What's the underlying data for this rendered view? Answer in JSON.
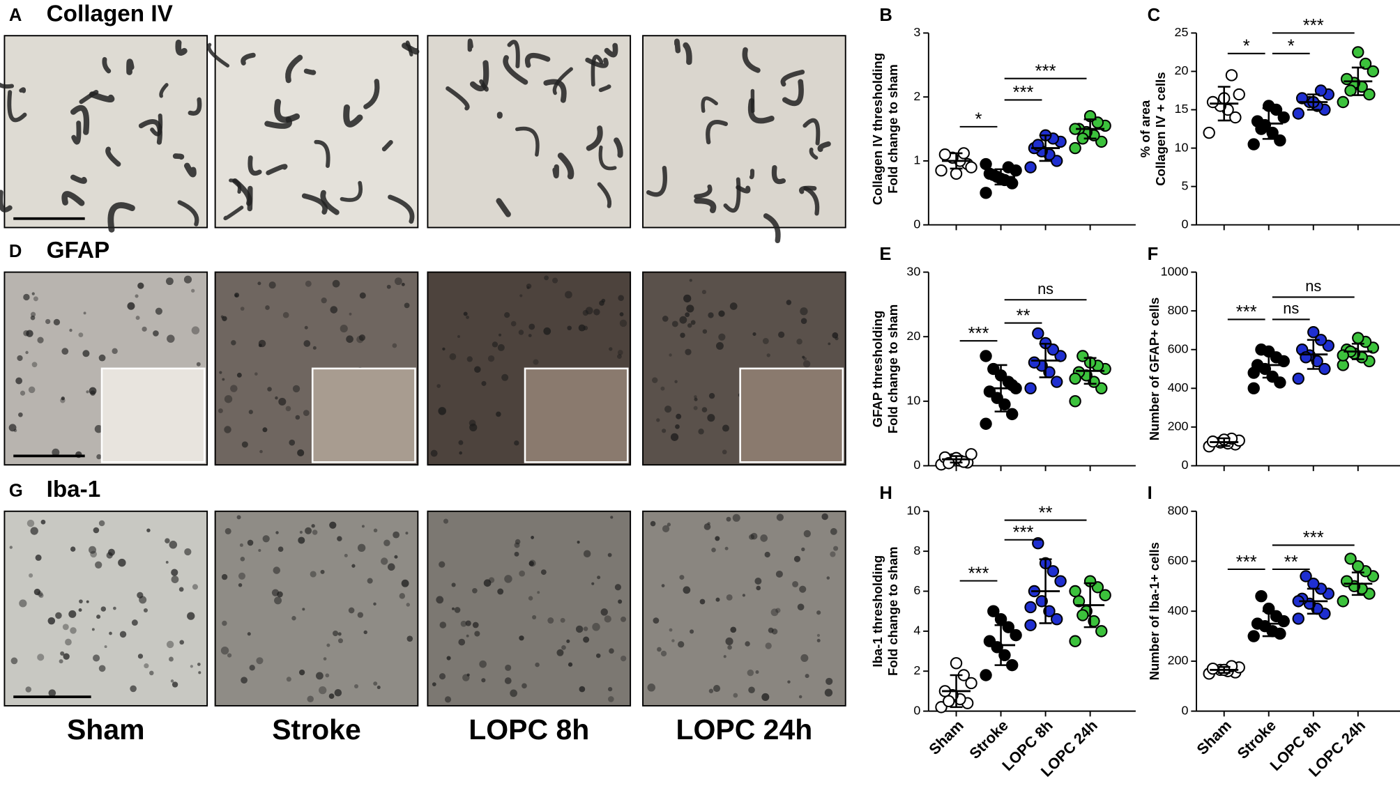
{
  "figure": {
    "rows": [
      {
        "letter": "A",
        "title": "Collagen IV"
      },
      {
        "letter": "D",
        "title": "GFAP"
      },
      {
        "letter": "G",
        "title": "Iba-1"
      }
    ],
    "columns": [
      "Sham",
      "Stroke",
      "LOPC 8h",
      "LOPC 24h"
    ]
  },
  "chart_data": [
    {
      "type": "scatter",
      "letter": "B",
      "ylabel": [
        "Collagen IV thresholding",
        "Fold change to sham"
      ],
      "categories": [
        null,
        null,
        null,
        null
      ],
      "ylim": [
        0,
        3
      ],
      "yticks": [
        0,
        1,
        2,
        3
      ],
      "groups": [
        {
          "color": "#ffffff",
          "values": [
            0.85,
            0.95,
            1.0,
            1.05,
            1.1,
            0.9,
            1.12,
            0.8
          ],
          "mean": 1.0,
          "sd": 0.12
        },
        {
          "color": "#000000",
          "values": [
            0.5,
            0.65,
            0.7,
            0.75,
            0.8,
            0.85,
            0.9,
            0.72,
            0.78,
            0.95
          ],
          "mean": 0.75,
          "sd": 0.12
        },
        {
          "color": "#1f2fd0",
          "values": [
            0.9,
            1.0,
            1.1,
            1.15,
            1.2,
            1.3,
            1.35,
            1.4,
            1.25
          ],
          "mean": 1.2,
          "sd": 0.2
        },
        {
          "color": "#3cc23c",
          "values": [
            1.2,
            1.3,
            1.4,
            1.45,
            1.5,
            1.55,
            1.6,
            1.7,
            1.35,
            1.5
          ],
          "mean": 1.5,
          "sd": 0.15
        }
      ],
      "comparisons": [
        {
          "from": 0,
          "to": 1,
          "label": "*"
        },
        {
          "from": 1,
          "to": 2,
          "label": "***"
        },
        {
          "from": 1,
          "to": 3,
          "label": "***"
        }
      ]
    },
    {
      "type": "scatter",
      "letter": "C",
      "ylabel": [
        "% of area",
        "Collagen IV + cells"
      ],
      "categories": [
        null,
        null,
        null,
        null
      ],
      "ylim": [
        0,
        25
      ],
      "yticks": [
        0,
        5,
        10,
        15,
        20,
        25
      ],
      "groups": [
        {
          "color": "#ffffff",
          "values": [
            12,
            14,
            15,
            15.5,
            16,
            17,
            19.5,
            16.5
          ],
          "mean": 15.8,
          "sd": 2.2
        },
        {
          "color": "#000000",
          "values": [
            10.5,
            11,
            12,
            13,
            13.5,
            14,
            15,
            15.5,
            12.5
          ],
          "mean": 13.2,
          "sd": 2
        },
        {
          "color": "#1f2fd0",
          "values": [
            14.5,
            15,
            15.5,
            16,
            16.5,
            17,
            17.5,
            16
          ],
          "mean": 16,
          "sd": 1
        },
        {
          "color": "#3cc23c",
          "values": [
            16,
            17,
            18,
            18.5,
            19,
            20,
            21,
            22.5,
            17.5
          ],
          "mean": 18.7,
          "sd": 1.8
        }
      ],
      "comparisons": [
        {
          "from": 0,
          "to": 1,
          "label": "*"
        },
        {
          "from": 1,
          "to": 2,
          "label": "*"
        },
        {
          "from": 1,
          "to": 3,
          "label": "***"
        }
      ]
    },
    {
      "type": "scatter",
      "letter": "E",
      "ylabel": [
        "GFAP thresholding",
        "Fold change to sham"
      ],
      "categories": [
        null,
        null,
        null,
        null
      ],
      "ylim": [
        0,
        30
      ],
      "yticks": [
        0,
        10,
        20,
        30
      ],
      "groups": [
        {
          "color": "#ffffff",
          "values": [
            0.2,
            0.5,
            0.8,
            1,
            1.3,
            1.8,
            0.6,
            1.2,
            0.4
          ],
          "mean": 1,
          "sd": 0.5
        },
        {
          "color": "#000000",
          "values": [
            6.5,
            8,
            9.5,
            10.5,
            11.5,
            12,
            13,
            14,
            15,
            17,
            12.5
          ],
          "mean": 12,
          "sd": 3.6
        },
        {
          "color": "#1f2fd0",
          "values": [
            12,
            13,
            14.5,
            15.5,
            16,
            17,
            18,
            19,
            20.5
          ],
          "mean": 16.3,
          "sd": 2.6
        },
        {
          "color": "#3cc23c",
          "values": [
            10,
            12,
            13,
            14,
            14.5,
            15,
            15.5,
            16,
            17,
            13.5
          ],
          "mean": 14.7,
          "sd": 2
        }
      ],
      "comparisons": [
        {
          "from": 0,
          "to": 1,
          "label": "***"
        },
        {
          "from": 1,
          "to": 2,
          "label": "**"
        },
        {
          "from": 1,
          "to": 3,
          "label": "ns"
        }
      ]
    },
    {
      "type": "scatter",
      "letter": "F",
      "ylabel": [
        "Number of GFAP+ cells"
      ],
      "categories": [
        null,
        null,
        null,
        null
      ],
      "ylim": [
        0,
        1000
      ],
      "yticks": [
        0,
        200,
        400,
        600,
        800,
        1000
      ],
      "groups": [
        {
          "color": "#ffffff",
          "values": [
            100,
            110,
            115,
            120,
            125,
            130,
            140,
            135
          ],
          "mean": 122,
          "sd": 20
        },
        {
          "color": "#000000",
          "values": [
            400,
            430,
            460,
            500,
            520,
            540,
            560,
            590,
            600,
            480
          ],
          "mean": 520,
          "sd": 65
        },
        {
          "color": "#1f2fd0",
          "values": [
            450,
            500,
            540,
            570,
            600,
            620,
            650,
            690,
            560
          ],
          "mean": 575,
          "sd": 75
        },
        {
          "color": "#3cc23c",
          "values": [
            520,
            540,
            560,
            580,
            600,
            610,
            640,
            660,
            590,
            570
          ],
          "mean": 590,
          "sd": 40
        }
      ],
      "comparisons": [
        {
          "from": 0,
          "to": 1,
          "label": "***"
        },
        {
          "from": 1,
          "to": 2,
          "label": "ns"
        },
        {
          "from": 1,
          "to": 3,
          "label": "ns"
        }
      ]
    },
    {
      "type": "scatter",
      "letter": "H",
      "ylabel": [
        "Iba-1 thresholding",
        "Fold change to sham"
      ],
      "categories": [
        "Sham",
        "Stroke",
        "LOPC 8h",
        "LOPC 24h"
      ],
      "ylim": [
        0,
        10
      ],
      "yticks": [
        0,
        2,
        4,
        6,
        8,
        10
      ],
      "groups": [
        {
          "color": "#ffffff",
          "values": [
            0.2,
            0.4,
            0.6,
            0.8,
            1,
            1.4,
            1.8,
            2.4,
            0.5
          ],
          "mean": 1,
          "sd": 0.8
        },
        {
          "color": "#000000",
          "values": [
            1.8,
            2.3,
            2.8,
            3.2,
            3.5,
            3.8,
            4.2,
            4.6,
            5
          ],
          "mean": 3.3,
          "sd": 1
        },
        {
          "color": "#1f2fd0",
          "values": [
            4.3,
            4.6,
            5,
            5.5,
            6,
            6.5,
            7,
            7.4,
            8.4,
            5.2
          ],
          "mean": 6,
          "sd": 1.6
        },
        {
          "color": "#3cc23c",
          "values": [
            3.5,
            4,
            4.5,
            5,
            5.5,
            5.8,
            6.2,
            6.5,
            4.8,
            6
          ],
          "mean": 5.3,
          "sd": 1.1
        }
      ],
      "comparisons": [
        {
          "from": 0,
          "to": 1,
          "label": "***"
        },
        {
          "from": 1,
          "to": 2,
          "label": "***"
        },
        {
          "from": 1,
          "to": 3,
          "label": "**"
        }
      ]
    },
    {
      "type": "scatter",
      "letter": "I",
      "ylabel": [
        "Number of Iba-1+ cells"
      ],
      "categories": [
        "Sham",
        "Stroke",
        "LOPC 8h",
        "LOPC 24h"
      ],
      "ylim": [
        0,
        800
      ],
      "yticks": [
        0,
        200,
        400,
        600,
        800
      ],
      "groups": [
        {
          "color": "#ffffff",
          "values": [
            150,
            155,
            160,
            165,
            170,
            175,
            180,
            165
          ],
          "mean": 165,
          "sd": 12
        },
        {
          "color": "#000000",
          "values": [
            300,
            310,
            320,
            340,
            350,
            360,
            380,
            410,
            460
          ],
          "mean": 350,
          "sd": 50
        },
        {
          "color": "#1f2fd0",
          "values": [
            370,
            390,
            410,
            430,
            450,
            470,
            490,
            510,
            540,
            440
          ],
          "mean": 440,
          "sd": 50
        },
        {
          "color": "#3cc23c",
          "values": [
            440,
            470,
            490,
            500,
            520,
            540,
            560,
            580,
            610
          ],
          "mean": 510,
          "sd": 45
        }
      ],
      "comparisons": [
        {
          "from": 0,
          "to": 1,
          "label": "***"
        },
        {
          "from": 1,
          "to": 2,
          "label": "**"
        },
        {
          "from": 1,
          "to": 3,
          "label": "***"
        }
      ]
    }
  ]
}
